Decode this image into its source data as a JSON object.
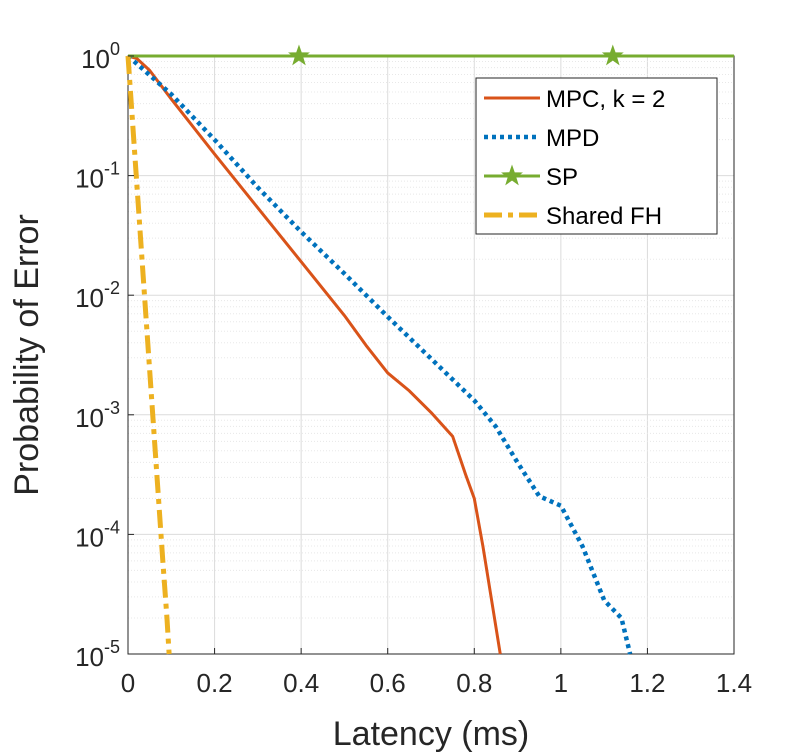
{
  "chart_data": {
    "type": "line",
    "title": "",
    "xlabel": "Latency (ms)",
    "ylabel": "Probability of Error",
    "xlim": [
      0,
      1.4
    ],
    "ylim_log10": [
      -5,
      0
    ],
    "y_scale": "log",
    "grid": "minor-and-major",
    "legend_position": "top-right",
    "x_ticks": [
      "0",
      "0.2",
      "0.4",
      "0.6",
      "0.8",
      "1",
      "1.2",
      "1.4"
    ],
    "x_tick_values": [
      0,
      0.2,
      0.4,
      0.6,
      0.8,
      1.0,
      1.2,
      1.4
    ],
    "y_ticks": [
      {
        "base": "10",
        "exp": "0",
        "value": 0
      },
      {
        "base": "10",
        "exp": "-1",
        "value": -1
      },
      {
        "base": "10",
        "exp": "-2",
        "value": -2
      },
      {
        "base": "10",
        "exp": "-3",
        "value": -3
      },
      {
        "base": "10",
        "exp": "-4",
        "value": -4
      },
      {
        "base": "10",
        "exp": "-5",
        "value": -5
      }
    ],
    "series": [
      {
        "name": "MPC, k = 2",
        "color": "#D95319",
        "style": "solid",
        "x": [
          0,
          0.02,
          0.05,
          0.1,
          0.2,
          0.3,
          0.4,
          0.5,
          0.55,
          0.6,
          0.65,
          0.7,
          0.75,
          0.78,
          0.8,
          0.82,
          0.84,
          0.86
        ],
        "log10_y": [
          0,
          -0.02,
          -0.12,
          -0.36,
          -0.82,
          -1.27,
          -1.72,
          -2.17,
          -2.42,
          -2.65,
          -2.8,
          -2.98,
          -3.18,
          -3.5,
          -3.7,
          -4.1,
          -4.55,
          -5
        ]
      },
      {
        "name": "MPD",
        "color": "#0072BD",
        "style": "dotted",
        "x": [
          0,
          0.1,
          0.2,
          0.3,
          0.4,
          0.5,
          0.6,
          0.7,
          0.8,
          0.85,
          0.9,
          0.95,
          1.0,
          1.05,
          1.1,
          1.14,
          1.16
        ],
        "log10_y": [
          0,
          -0.32,
          -0.7,
          -1.1,
          -1.47,
          -1.82,
          -2.18,
          -2.53,
          -2.88,
          -3.1,
          -3.4,
          -3.68,
          -3.76,
          -4.1,
          -4.55,
          -4.7,
          -5
        ]
      },
      {
        "name": "SP",
        "color": "#77AC30",
        "style": "solid-star",
        "x": [
          0,
          1.4
        ],
        "log10_y": [
          0,
          0
        ],
        "markers_x": [
          0.395,
          1.12
        ]
      },
      {
        "name": "Shared FH",
        "color": "#EDB120",
        "style": "dashdot",
        "x": [
          0,
          0.02,
          0.04,
          0.06,
          0.08,
          0.09,
          0.095
        ],
        "log10_y": [
          0,
          -1.05,
          -2.1,
          -3.15,
          -4.2,
          -4.7,
          -5
        ]
      }
    ]
  }
}
